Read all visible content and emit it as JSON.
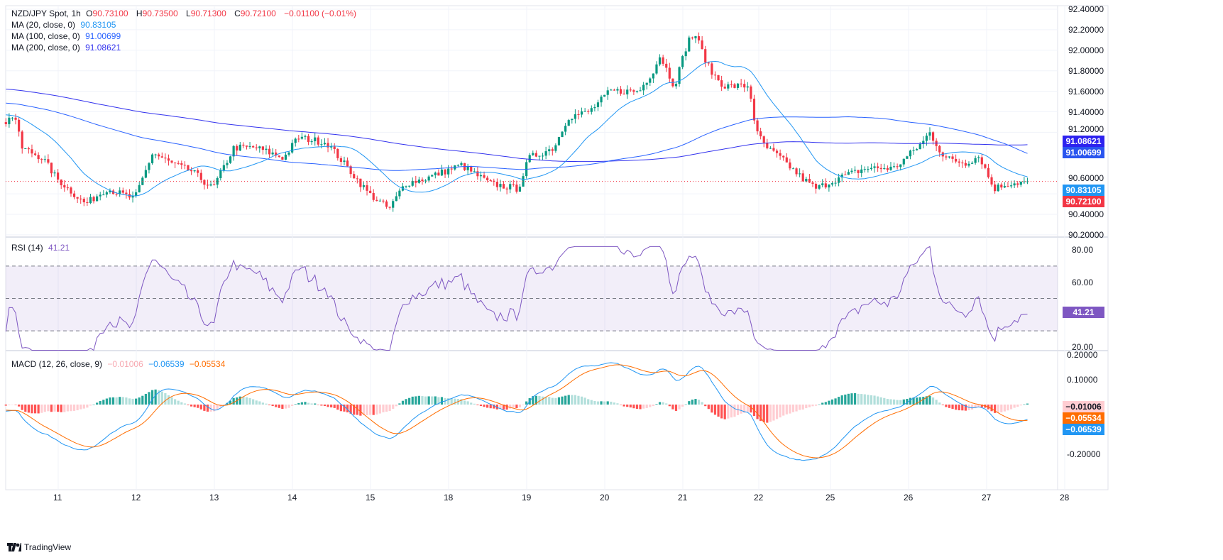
{
  "header": {
    "symbol": "NZD/JPY Spot, 1h",
    "o_label": "O",
    "o": "90.73100",
    "h_label": "H",
    "h": "90.73500",
    "l_label": "L",
    "l": "90.71300",
    "c_label": "C",
    "c": "90.72100",
    "change": "−0.01100 (−0.01%)"
  },
  "ma": [
    {
      "label": "MA (20, close, 0)",
      "value": "90.83105",
      "color": "#2196f3"
    },
    {
      "label": "MA (100, close, 0)",
      "value": "91.00699",
      "color": "#2962ff"
    },
    {
      "label": "MA (200, close, 0)",
      "value": "91.08621",
      "color": "#3333ee"
    }
  ],
  "rsi": {
    "label": "RSI (14)",
    "value": "41.21",
    "color": "#7e57c2"
  },
  "macd": {
    "label": "MACD (12, 26, close, 9)",
    "hist": "−0.01006",
    "macd": "−0.06539",
    "signal": "−0.05534"
  },
  "price_tags": {
    "ma200": "91.08621",
    "ma100": "91.00699",
    "ma20": "90.83105",
    "last": "90.72100",
    "rsi": "41.21",
    "hist": "−0.01006",
    "signal": "−0.05534",
    "macd": "−0.06539"
  },
  "branding": "TradingView",
  "chart_data": {
    "type": "candlestick",
    "title": "NZD/JPY Spot, 1h",
    "x_unit": "trading days since Mar 11 00:00 (approx close path)",
    "x_tick_labels": [
      "11",
      "12",
      "13",
      "14",
      "15",
      "18",
      "19",
      "20",
      "21",
      "22",
      "25",
      "26",
      "27",
      "28"
    ],
    "price_ticks": [
      "92.40000",
      "92.20000",
      "92.00000",
      "91.80000",
      "91.60000",
      "91.40000",
      "91.20000",
      "90.60000",
      "90.40000",
      "90.20000"
    ],
    "price_range": [
      90.2,
      92.4
    ],
    "rsi_ticks": [
      "80.00",
      "60.00",
      "20.00"
    ],
    "rsi_levels": [
      70,
      50,
      30
    ],
    "macd_ticks": [
      "0.20000",
      "0.10000",
      "-0.20000"
    ],
    "close_path": [
      [
        -0.67,
        91.3
      ],
      [
        -0.56,
        91.38
      ],
      [
        -0.47,
        91.05
      ],
      [
        -0.2,
        90.95
      ],
      [
        -0.02,
        90.75
      ],
      [
        0.35,
        90.5
      ],
      [
        0.62,
        90.65
      ],
      [
        0.98,
        90.55
      ],
      [
        1.21,
        91.0
      ],
      [
        1.44,
        90.9
      ],
      [
        1.71,
        90.82
      ],
      [
        1.98,
        90.65
      ],
      [
        2.25,
        91.05
      ],
      [
        2.53,
        91.05
      ],
      [
        2.89,
        90.95
      ],
      [
        3.07,
        91.15
      ],
      [
        3.44,
        91.1
      ],
      [
        3.71,
        90.85
      ],
      [
        3.98,
        90.6
      ],
      [
        4.24,
        90.45
      ],
      [
        4.44,
        90.7
      ],
      [
        4.71,
        90.75
      ],
      [
        5.16,
        90.88
      ],
      [
        5.53,
        90.7
      ],
      [
        5.89,
        90.65
      ],
      [
        6.03,
        90.95
      ],
      [
        6.35,
        91.05
      ],
      [
        6.53,
        91.35
      ],
      [
        6.8,
        91.4
      ],
      [
        7.07,
        91.6
      ],
      [
        7.44,
        91.6
      ],
      [
        7.62,
        91.8
      ],
      [
        7.71,
        91.95
      ],
      [
        7.89,
        91.65
      ],
      [
        8.07,
        92.1
      ],
      [
        8.16,
        92.15
      ],
      [
        8.35,
        91.8
      ],
      [
        8.53,
        91.65
      ],
      [
        8.85,
        91.65
      ],
      [
        8.94,
        91.2
      ],
      [
        9.07,
        91.05
      ],
      [
        9.25,
        90.95
      ],
      [
        9.53,
        90.75
      ],
      [
        9.71,
        90.65
      ],
      [
        9.98,
        90.75
      ],
      [
        10.35,
        90.85
      ],
      [
        10.71,
        90.85
      ],
      [
        11.07,
        91.1
      ],
      [
        11.16,
        91.2
      ],
      [
        11.35,
        90.95
      ],
      [
        11.62,
        90.9
      ],
      [
        11.8,
        90.97
      ],
      [
        11.98,
        90.65
      ],
      [
        12.16,
        90.7
      ],
      [
        12.44,
        90.72
      ]
    ],
    "last_price": 90.721
  }
}
